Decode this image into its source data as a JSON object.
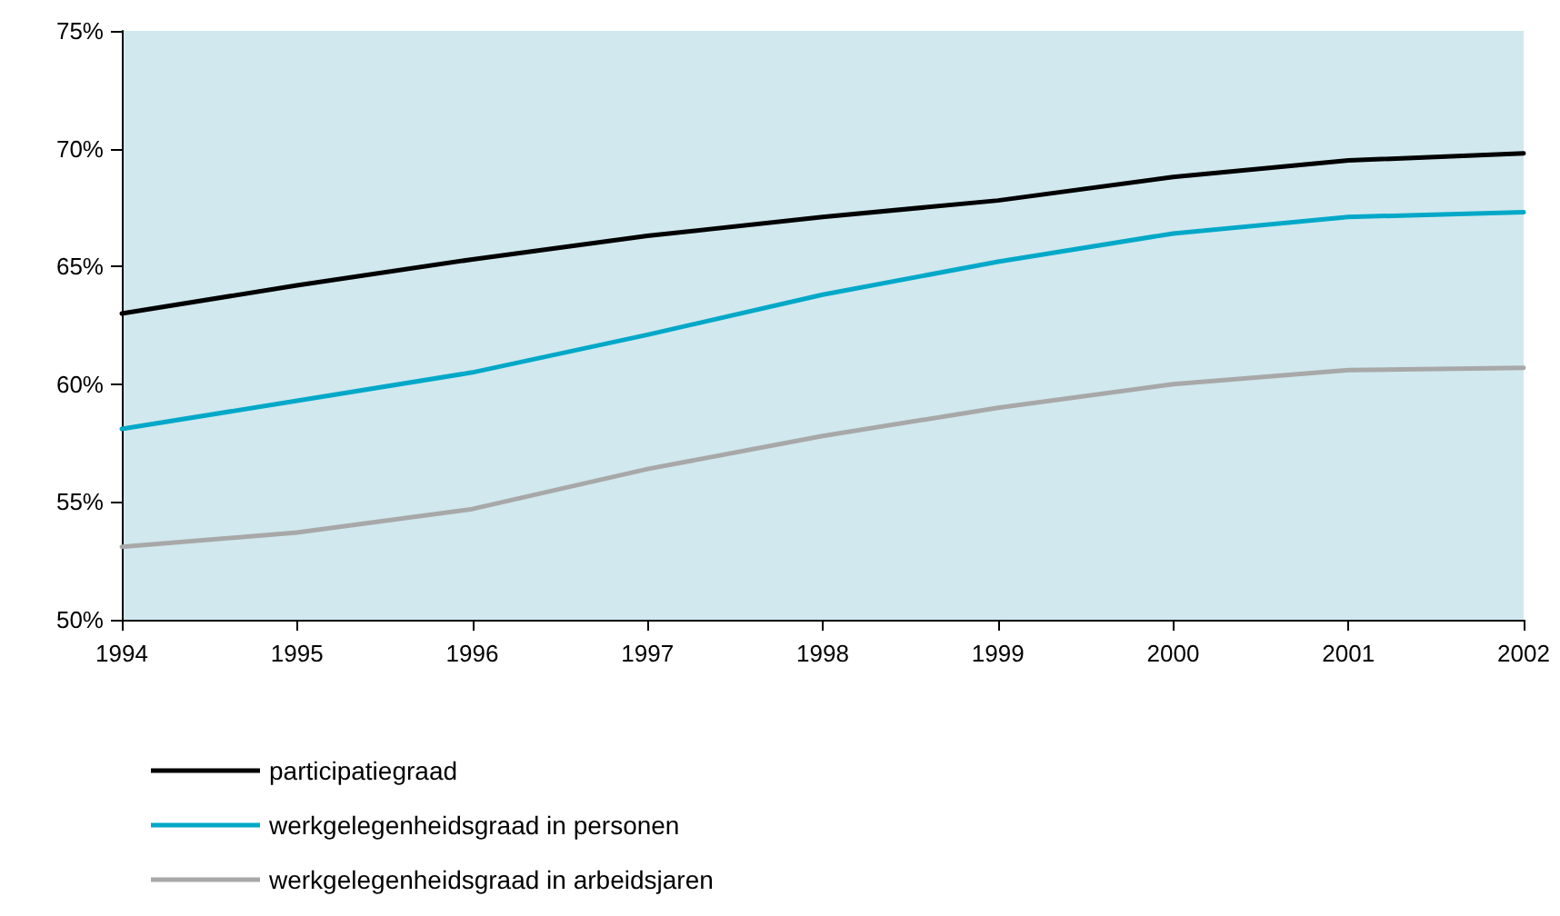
{
  "chart_data": {
    "type": "line",
    "categories": [
      "1994",
      "1995",
      "1996",
      "1997",
      "1998",
      "1999",
      "2000",
      "2001",
      "2002"
    ],
    "series": [
      {
        "name": "participatiegraad",
        "color": "#000000",
        "values": [
          63.0,
          64.2,
          65.3,
          66.3,
          67.1,
          67.8,
          68.8,
          69.5,
          69.8
        ]
      },
      {
        "name": "werkgelegenheidsgraad in personen",
        "color": "#00a8c8",
        "values": [
          58.1,
          59.3,
          60.5,
          62.1,
          63.8,
          65.2,
          66.4,
          67.1,
          67.3
        ]
      },
      {
        "name": "werkgelegenheidsgraad in arbeidsjaren",
        "color": "#a8a8a8",
        "values": [
          53.1,
          53.7,
          54.7,
          56.4,
          57.8,
          59.0,
          60.0,
          60.6,
          60.7
        ]
      }
    ],
    "ylim": [
      50,
      75
    ],
    "yticks": [
      {
        "value": 50,
        "label": "50%"
      },
      {
        "value": 55,
        "label": "55%"
      },
      {
        "value": 60,
        "label": "60%"
      },
      {
        "value": 65,
        "label": "65%"
      },
      {
        "value": 70,
        "label": "70%"
      },
      {
        "value": 75,
        "label": "75%"
      }
    ],
    "grid": false,
    "legend": "bottom left",
    "marker": "none",
    "line_style": "solid"
  }
}
